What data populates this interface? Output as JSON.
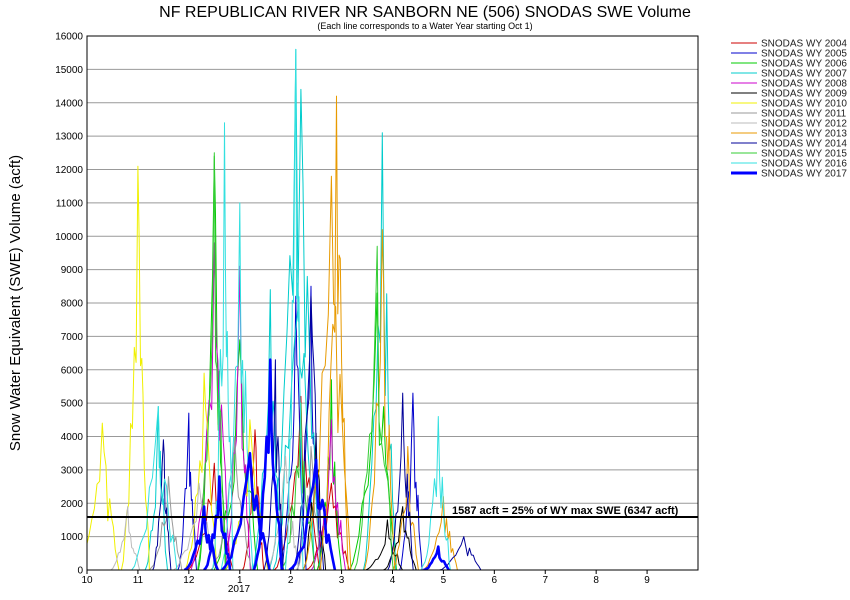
{
  "chart_data": {
    "type": "line",
    "title": "NF REPUBLICAN RIVER NR SANBORN NE (506) SNODAS SWE Volume",
    "subtitle": "(Each line corresponds to a Water Year starting Oct 1)",
    "ylabel": "Snow Water Equivalent (SWE) Volume (acft)",
    "xlabel": "",
    "x_ticks": [
      "10",
      "11",
      "12",
      "1",
      "2",
      "3",
      "4",
      "5",
      "6",
      "7",
      "8",
      "9"
    ],
    "x_year_label": "2017",
    "ylim": [
      0,
      16000
    ],
    "y_ticks": [
      0,
      1000,
      2000,
      3000,
      4000,
      5000,
      6000,
      7000,
      8000,
      9000,
      10000,
      11000,
      12000,
      13000,
      14000,
      15000,
      16000
    ],
    "grid": "horizontal",
    "legend_position": "right",
    "threshold": {
      "value": 1587,
      "label": "1587 acft = 25% of WY max SWE (6347 acft)"
    },
    "series": [
      {
        "name": "SNODAS WY 2004",
        "color": "#cc0000",
        "peaks": [
          [
            12.5,
            3200
          ],
          [
            1.3,
            4200
          ],
          [
            2.2,
            5200
          ],
          [
            2.8,
            2600
          ]
        ]
      },
      {
        "name": "SNODAS WY 2005",
        "color": "#0000cc",
        "peaks": [
          [
            12.0,
            4700
          ],
          [
            2.1,
            8200
          ],
          [
            2.4,
            8500
          ],
          [
            4.4,
            5300
          ]
        ]
      },
      {
        "name": "SNODAS WY 2006",
        "color": "#00cc00",
        "peaks": [
          [
            12.5,
            12400
          ],
          [
            1.0,
            6900
          ],
          [
            2.8,
            5700
          ],
          [
            3.7,
            8300
          ]
        ]
      },
      {
        "name": "SNODAS WY 2007",
        "color": "#00cccc",
        "peaks": [
          [
            11.4,
            4900
          ],
          [
            1.6,
            8400
          ],
          [
            2.1,
            15600
          ],
          [
            2.2,
            14400
          ],
          [
            3.8,
            13100
          ]
        ]
      },
      {
        "name": "SNODAS WY 2008",
        "color": "#cc00cc",
        "peaks": [
          [
            12.5,
            9800
          ],
          [
            1.0,
            9100
          ],
          [
            2.8,
            4500
          ]
        ]
      },
      {
        "name": "SNODAS WY 2009",
        "color": "#000000",
        "peaks": [
          [
            2.5,
            4100
          ],
          [
            3.9,
            1500
          ],
          [
            4.2,
            1900
          ]
        ]
      },
      {
        "name": "SNODAS WY 2010",
        "color": "#f0f000",
        "peaks": [
          [
            10.3,
            4400
          ],
          [
            11.0,
            12100
          ],
          [
            12.3,
            5900
          ],
          [
            1.2,
            4500
          ]
        ]
      },
      {
        "name": "SNODAS WY 2011",
        "color": "#999999",
        "peaks": [
          [
            11.6,
            2800
          ],
          [
            12.9,
            4000
          ],
          [
            2.4,
            3700
          ]
        ]
      },
      {
        "name": "SNODAS WY 2012",
        "color": "#bbbbbb",
        "peaks": [
          [
            10.8,
            1900
          ],
          [
            12.2,
            2600
          ],
          [
            1.9,
            3400
          ]
        ]
      },
      {
        "name": "SNODAS WY 2013",
        "color": "#e89a00",
        "peaks": [
          [
            2.8,
            11800
          ],
          [
            2.9,
            14200
          ],
          [
            3.8,
            10200
          ],
          [
            4.3,
            3700
          ],
          [
            5.0,
            2200
          ]
        ]
      },
      {
        "name": "SNODAS WY 2014",
        "color": "#000099",
        "peaks": [
          [
            11.5,
            3900
          ],
          [
            1.7,
            6300
          ],
          [
            2.4,
            8200
          ],
          [
            4.2,
            5300
          ],
          [
            5.4,
            1000
          ]
        ]
      },
      {
        "name": "SNODAS WY 2015",
        "color": "#33cc33",
        "peaks": [
          [
            12.5,
            12500
          ],
          [
            2.2,
            5000
          ],
          [
            3.7,
            9700
          ]
        ]
      },
      {
        "name": "SNODAS WY 2016",
        "color": "#33e0e0",
        "peaks": [
          [
            11.4,
            4900
          ],
          [
            12.7,
            13400
          ],
          [
            1.0,
            11000
          ],
          [
            2.1,
            15600
          ],
          [
            4.9,
            4600
          ]
        ]
      },
      {
        "name": "SNODAS WY 2017",
        "color": "#0000ff",
        "bold": true,
        "peaks": [
          [
            12.3,
            1900
          ],
          [
            12.6,
            2800
          ],
          [
            1.2,
            3500
          ],
          [
            1.6,
            6300
          ],
          [
            2.5,
            3300
          ],
          [
            4.9,
            700
          ]
        ]
      }
    ]
  }
}
